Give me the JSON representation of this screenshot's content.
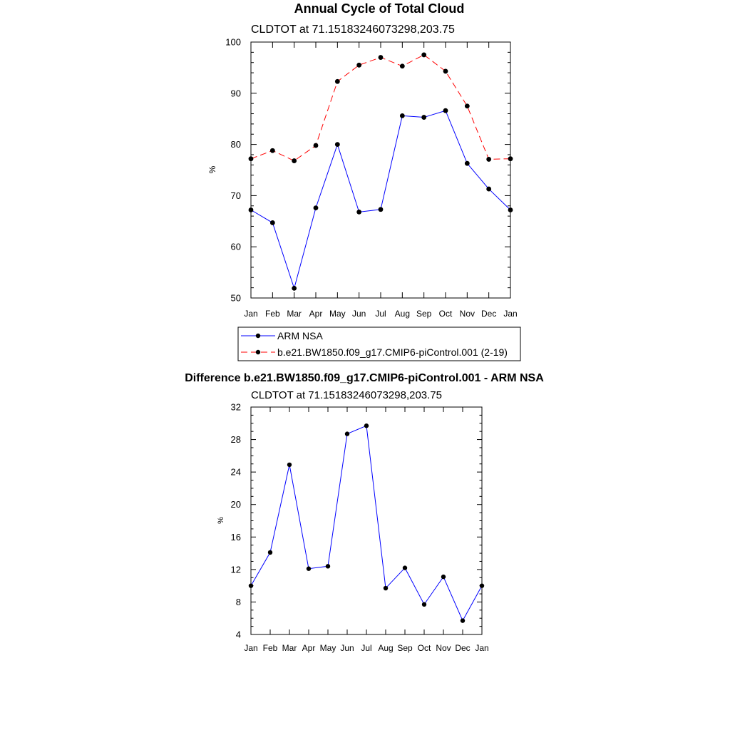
{
  "chart_data": [
    {
      "type": "line",
      "title": "Annual Cycle of Total Cloud",
      "subtitle": "CLDTOT at 71.15183246073298,203.75",
      "xlabel": "",
      "ylabel": "%",
      "categories": [
        "Jan",
        "Feb",
        "Mar",
        "Apr",
        "May",
        "Jun",
        "Jul",
        "Aug",
        "Sep",
        "Oct",
        "Nov",
        "Dec",
        "Jan"
      ],
      "ylim": [
        50,
        100
      ],
      "yticks": [
        50,
        60,
        70,
        80,
        90,
        100
      ],
      "yminor_step": 2,
      "grid": false,
      "legend_position": "bottom",
      "series": [
        {
          "name": "ARM NSA",
          "color": "#0000ff",
          "dash": "solid",
          "values": [
            67.2,
            64.7,
            51.9,
            67.6,
            80.0,
            66.8,
            67.3,
            85.6,
            85.3,
            86.6,
            76.3,
            71.3,
            67.2
          ]
        },
        {
          "name": "b.e21.BW1850.f09_g17.CMIP6-piControl.001 (2-19)",
          "color": "#ff0000",
          "dash": "dashed",
          "values": [
            77.2,
            78.8,
            76.8,
            79.8,
            92.3,
            95.5,
            97.0,
            95.3,
            97.5,
            94.3,
            87.5,
            77.1,
            77.2
          ]
        }
      ]
    },
    {
      "type": "line",
      "title": "Difference b.e21.BW1850.f09_g17.CMIP6-piControl.001 - ARM NSA",
      "subtitle": "CLDTOT at 71.15183246073298,203.75",
      "xlabel": "",
      "ylabel": "%",
      "categories": [
        "Jan",
        "Feb",
        "Mar",
        "Apr",
        "May",
        "Jun",
        "Jul",
        "Aug",
        "Sep",
        "Oct",
        "Nov",
        "Dec",
        "Jan"
      ],
      "ylim": [
        4,
        32
      ],
      "yticks": [
        4,
        8,
        12,
        16,
        20,
        24,
        28,
        32
      ],
      "yminor_step": 1,
      "grid": false,
      "series": [
        {
          "name": "Difference",
          "color": "#0000ff",
          "dash": "solid",
          "values": [
            10.0,
            14.1,
            24.9,
            12.1,
            12.4,
            28.7,
            29.7,
            9.7,
            12.2,
            7.7,
            11.1,
            5.7,
            10.0
          ]
        }
      ]
    }
  ]
}
